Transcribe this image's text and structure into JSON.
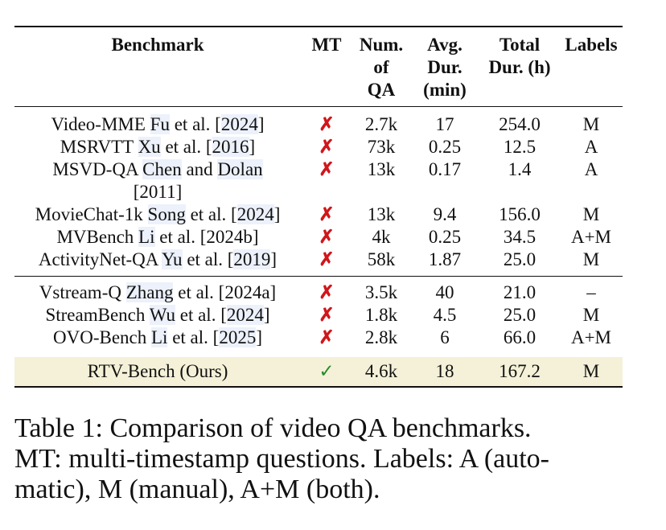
{
  "table": {
    "headers": [
      [
        "Benchmark"
      ],
      [
        "MT"
      ],
      [
        "Num.",
        "of",
        "QA"
      ],
      [
        "Avg.",
        "Dur.",
        "(min)"
      ],
      [
        "Total",
        "Dur. (h)"
      ],
      [
        "Labels"
      ]
    ],
    "groups": [
      {
        "rows": [
          {
            "name": "Video-MME",
            "author": "Fu",
            "etal": " et al. [",
            "year": "2024",
            "end": "]",
            "mt": "✗",
            "qa": "2.7k",
            "avg": "17",
            "total": "254.0",
            "labels": "M"
          },
          {
            "name": "MSRVTT",
            "author": "Xu",
            "etal": " et al. [",
            "year": "2016",
            "end": "]",
            "mt": "✗",
            "qa": "73k",
            "avg": "0.25",
            "total": "12.5",
            "labels": "A"
          },
          {
            "name": "MSVD-QA",
            "author": "Chen",
            "etal": " and ",
            "year": "Dolan",
            "end": "",
            "line2": "[2011]",
            "mt": "✗",
            "qa": "13k",
            "avg": "0.17",
            "total": "1.4",
            "labels": "A"
          },
          {
            "name": "MovieChat-1k",
            "author": "Song",
            "etal": " et al. [",
            "year": "2024",
            "end": "]",
            "mt": "✗",
            "qa": "13k",
            "avg": "9.4",
            "total": "156.0",
            "labels": "M"
          },
          {
            "name": "MVBench",
            "author": "Li",
            "etal": " et al. [2024b]",
            "year": "",
            "end": "",
            "mt": "✗",
            "qa": "4k",
            "avg": "0.25",
            "total": "34.5",
            "labels": "A+M"
          },
          {
            "name": "ActivityNet-QA",
            "author": "Yu",
            "etal": " et al. [",
            "year": "2019",
            "end": "]",
            "mt": "✗",
            "qa": "58k",
            "avg": "1.87",
            "total": "25.0",
            "labels": "M"
          }
        ]
      },
      {
        "rows": [
          {
            "name": "Vstream-Q",
            "author": "Zhang",
            "etal": " et al. [2024a]",
            "year": "",
            "end": "",
            "mt": "✗",
            "qa": "3.5k",
            "avg": "40",
            "total": "21.0",
            "labels": "–"
          },
          {
            "name": "StreamBench",
            "author": "Wu",
            "etal": " et al. [",
            "year": "2024",
            "end": "]",
            "mt": "✗",
            "qa": "1.8k",
            "avg": "4.5",
            "total": "25.0",
            "labels": "M"
          },
          {
            "name": "OVO-Bench",
            "author": "Li",
            "etal": " et al. [",
            "year": "2025",
            "end": "]",
            "mt": "✗",
            "qa": "2.8k",
            "avg": "6",
            "total": "66.0",
            "labels": "A+M"
          }
        ]
      }
    ],
    "ours": {
      "name": "RTV-Bench (Ours)",
      "mt": "✓",
      "qa": "4.6k",
      "avg": "18",
      "total": "167.2",
      "labels": "M"
    }
  },
  "caption": "Table 1: Comparison of video QA benchmarks. MT: multi-timestamp questions. Labels: A (automatic), M (manual), A+M (both).",
  "caption_lines": [
    "Table 1:  Comparison of video QA benchmarks.",
    "MT: multi-timestamp questions. Labels: A (auto-",
    "matic), M (manual), A+M (both)."
  ]
}
